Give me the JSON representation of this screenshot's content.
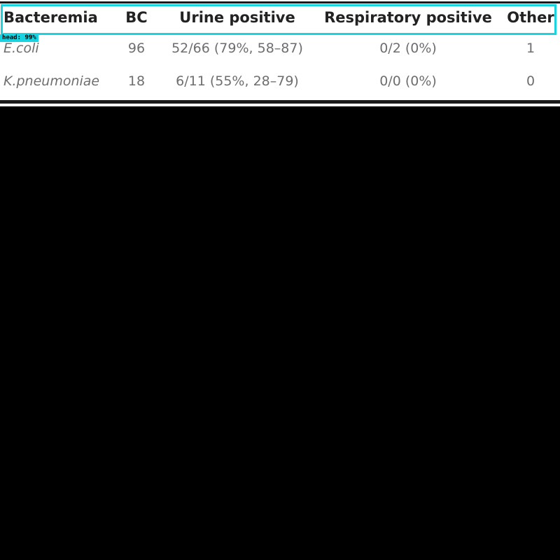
{
  "table": {
    "columns": [
      "Bacteremia",
      "BC",
      "Urine positive",
      "Respiratory positive",
      "Other"
    ],
    "rows": [
      [
        "E.coli",
        "96",
        "52/66 (79%, 58–87)",
        "0/2 (0%)",
        "1"
      ],
      [
        "K.pneumoniae",
        "18",
        "6/11 (55%, 28–79)",
        "0/0 (0%)",
        "0"
      ]
    ]
  },
  "detection": {
    "label": "head: 99%",
    "color": "#19d3e0"
  }
}
